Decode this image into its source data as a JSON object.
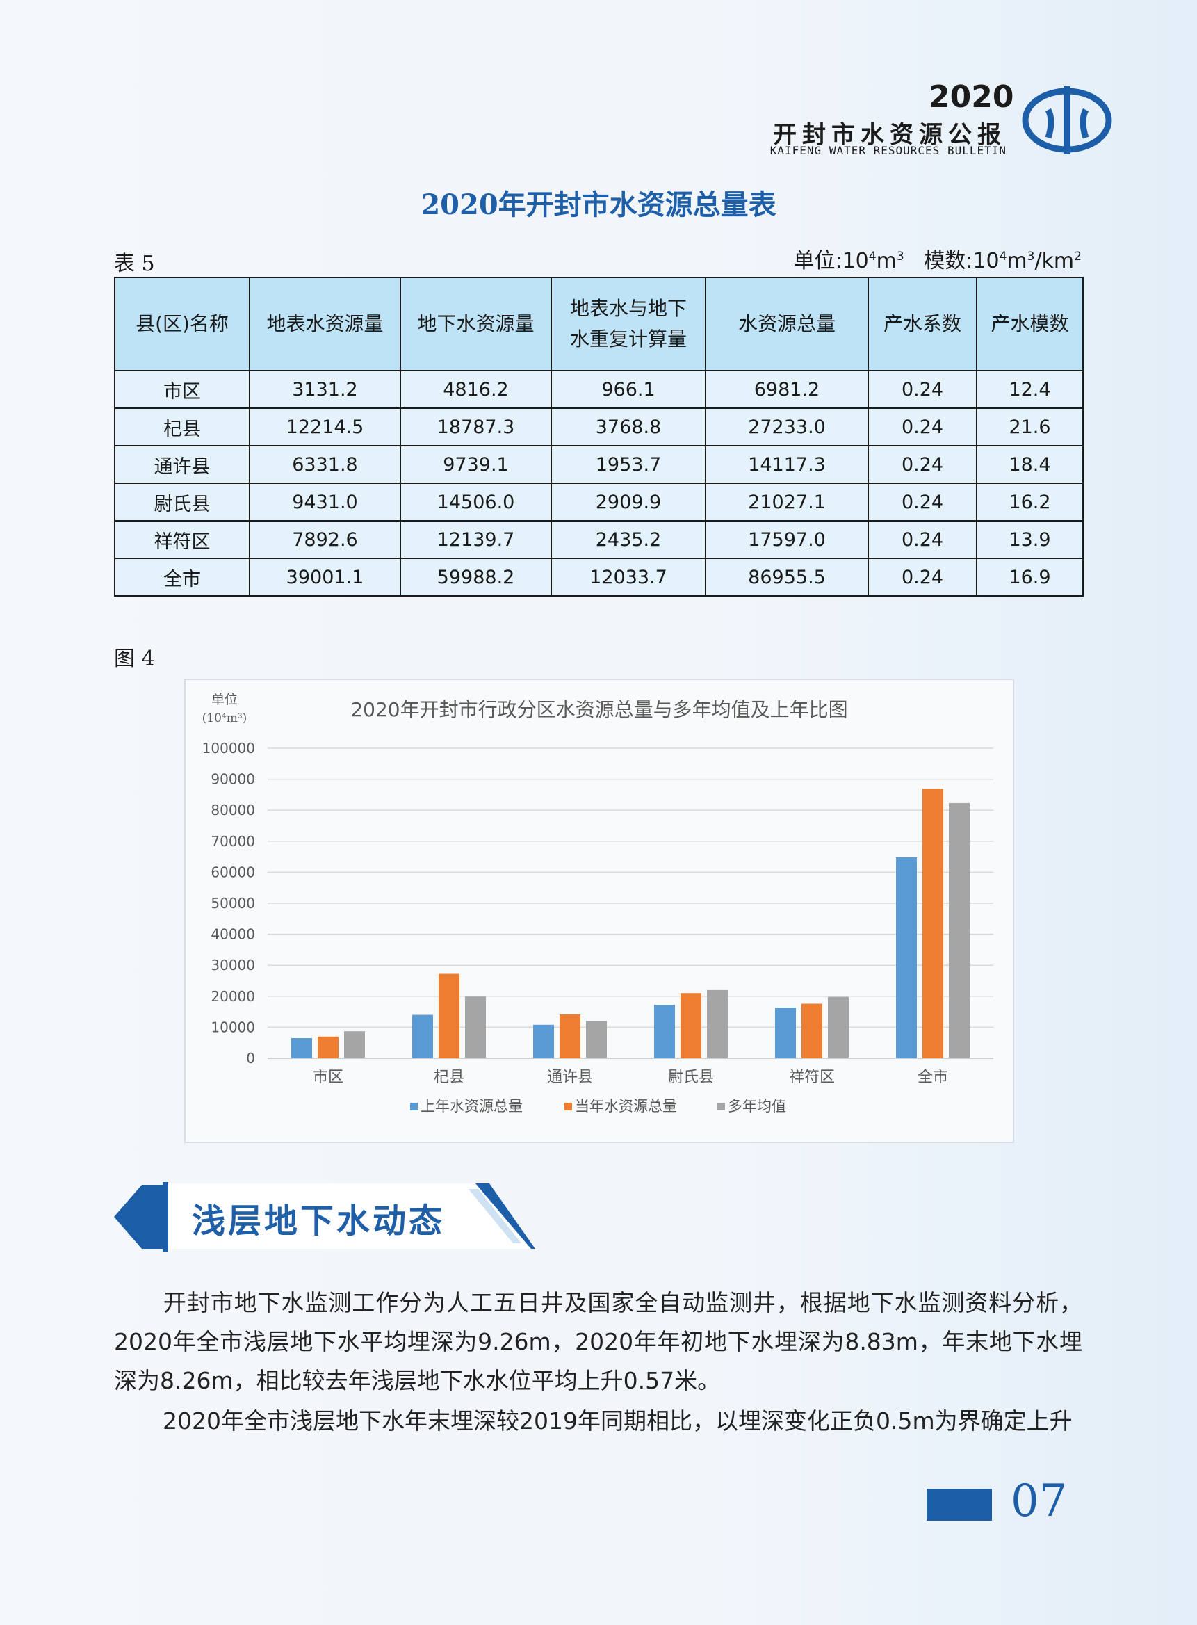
{
  "header": {
    "year": "2020",
    "title": "开封市水资源公报",
    "subtitle_en": "KAIFENG WATER RESOURCES BULLETIN",
    "logo_icon": "water-bureau-logo-icon"
  },
  "table": {
    "title": "2020年开封市水资源总量表",
    "label": "表 5",
    "units": {
      "unit_prefix": "单位:",
      "unit_base": "10",
      "unit_exp": "4",
      "unit_m": "m",
      "unit_m_exp": "3",
      "modulus_prefix": "模数:",
      "modulus_base": "10",
      "modulus_exp": "4",
      "modulus_m": "m",
      "modulus_m_exp": "3",
      "modulus_km": "/km",
      "modulus_km_exp": "2"
    },
    "headers": [
      "县(区)名称",
      "地表水资源量",
      "地下水资源量",
      "地表水与地下水重复计算量",
      "水资源总量",
      "产水系数",
      "产水模数"
    ],
    "header_lines": {
      "h3_line1": "地表水与地下",
      "h3_line2": "水重复计算量"
    },
    "rows": [
      [
        "市区",
        "3131.2",
        "4816.2",
        "966.1",
        "6981.2",
        "0.24",
        "12.4"
      ],
      [
        "杞县",
        "12214.5",
        "18787.3",
        "3768.8",
        "27233.0",
        "0.24",
        "21.6"
      ],
      [
        "通许县",
        "6331.8",
        "9739.1",
        "1953.7",
        "14117.3",
        "0.24",
        "18.4"
      ],
      [
        "尉氏县",
        "9431.0",
        "14506.0",
        "2909.9",
        "21027.1",
        "0.24",
        "16.2"
      ],
      [
        "祥符区",
        "7892.6",
        "12139.7",
        "2435.2",
        "17597.0",
        "0.24",
        "13.9"
      ],
      [
        "全市",
        "39001.1",
        "59988.2",
        "12033.7",
        "86955.5",
        "0.24",
        "16.9"
      ]
    ]
  },
  "figure": {
    "label": "图 4"
  },
  "chart_data": {
    "type": "bar",
    "title": "2020年开封市行政分区水资源总量与多年均值及上年比图",
    "ylabel_line1": "单位",
    "ylabel_line2": "(10⁴m³)",
    "categories": [
      "市区",
      "杞县",
      "通许县",
      "尉氏县",
      "祥符区",
      "全市"
    ],
    "ylim": [
      0,
      100000
    ],
    "yticks": [
      "0",
      "10000",
      "20000",
      "30000",
      "40000",
      "50000",
      "60000",
      "70000",
      "80000",
      "90000",
      "100000"
    ],
    "grid": true,
    "legend_position": "bottom",
    "series": [
      {
        "name": "上年水资源总量",
        "color": "#5b9bd5",
        "values": [
          6500,
          14000,
          10800,
          17200,
          16300,
          64800
        ]
      },
      {
        "name": "当年水资源总量",
        "color": "#ed7d31",
        "values": [
          6981.2,
          27233.0,
          14117.3,
          21027.1,
          17597.0,
          86955.5
        ]
      },
      {
        "name": "多年均值",
        "color": "#a5a5a5",
        "values": [
          8700,
          19900,
          12000,
          22000,
          19800,
          82300
        ]
      }
    ]
  },
  "section": {
    "title": "浅层地下水动态"
  },
  "body": {
    "para1": "开封市地下水监测工作分为人工五日井及国家全自动监测井，根据地下水监测资料分析，2020年全市浅层地下水平均埋深为9.26m，2020年年初地下水埋深为8.83m，年末地下水埋深为8.26m，相比较去年浅层地下水水位平均上升0.57米。",
    "para2": "2020年全市浅层地下水年末埋深较2019年同期相比，以埋深变化正负0.5m为界确定上升"
  },
  "footer": {
    "page_number": "07",
    "bar_color": "#1d5ea8"
  }
}
